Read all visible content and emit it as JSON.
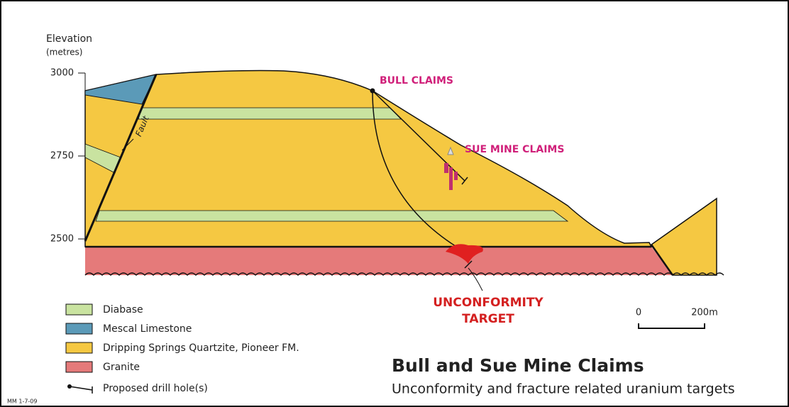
{
  "axis": {
    "title": "Elevation",
    "unit": "(metres)",
    "ticks": [
      "3000",
      "2750",
      "2500"
    ]
  },
  "labels": {
    "fault": "Fault",
    "bull": "BULL CLAIMS",
    "sue": "SUE MINE CLAIMS",
    "target": [
      "UNCONFORMITY",
      "TARGET"
    ]
  },
  "scale": {
    "start": "0",
    "end": "200m"
  },
  "legend": [
    "Diabase",
    "Mescal Limestone",
    "Dripping Springs Quartzite, Pioneer FM.",
    "Granite",
    "Proposed drill hole(s)"
  ],
  "title": "Bull and Sue Mine Claims",
  "subtitle": "Unconformity and fracture related uranium targets",
  "footnote": "MM 1-7-09"
}
